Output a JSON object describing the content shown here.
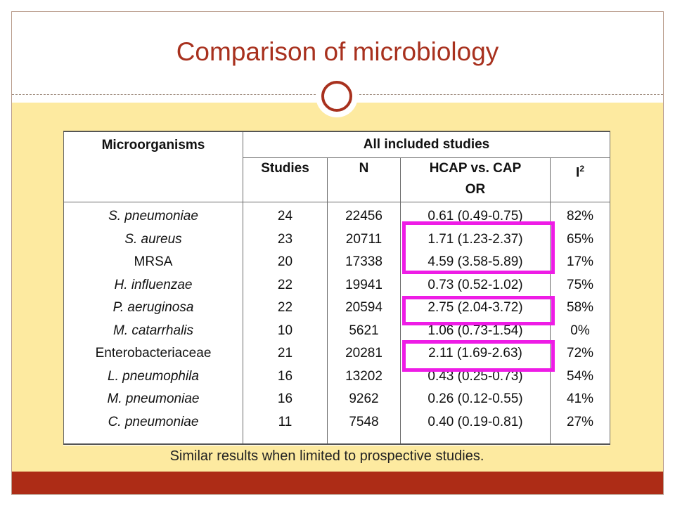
{
  "slide": {
    "title": "Comparison of microbiology",
    "footnote": "Similar results when limited to prospective studies."
  },
  "table": {
    "header_col1": "Microorganisms",
    "header_group": "All included studies",
    "subheaders": {
      "studies": "Studies",
      "n": "N",
      "or_line1": "HCAP vs. CAP",
      "or_line2": "OR",
      "i2_base": "I",
      "i2_sup": "2"
    },
    "rows": [
      {
        "organism": "S. pneumoniae",
        "italic": true,
        "studies": "24",
        "n": "22456",
        "or": "0.61 (0.49-0.75)",
        "i2": "82%"
      },
      {
        "organism": "S. aureus",
        "italic": true,
        "studies": "23",
        "n": "20711",
        "or": "1.71 (1.23-2.37)",
        "i2": "65%"
      },
      {
        "organism": "MRSA",
        "italic": false,
        "studies": "20",
        "n": "17338",
        "or": "4.59 (3.58-5.89)",
        "i2": "17%"
      },
      {
        "organism": "H. influenzae",
        "italic": true,
        "studies": "22",
        "n": "19941",
        "or": "0.73 (0.52-1.02)",
        "i2": "75%"
      },
      {
        "organism": "P. aeruginosa",
        "italic": true,
        "studies": "22",
        "n": "20594",
        "or": "2.75 (2.04-3.72)",
        "i2": "58%"
      },
      {
        "organism": "M. catarrhalis",
        "italic": true,
        "studies": "10",
        "n": "5621",
        "or": "1.06 (0.73-1.54)",
        "i2": "0%"
      },
      {
        "organism": "Enterobacteriaceae",
        "italic": false,
        "studies": "21",
        "n": "20281",
        "or": "2.11 (1.69-2.63)",
        "i2": "72%"
      },
      {
        "organism": "L. pneumophila",
        "italic": true,
        "studies": "16",
        "n": "13202",
        "or": "0.43 (0.25-0.73)",
        "i2": "54%"
      },
      {
        "organism": "M. pneumoniae",
        "italic": true,
        "studies": "16",
        "n": "9262",
        "or": "0.26 (0.12-0.55)",
        "i2": "41%"
      },
      {
        "organism": "C. pneumoniae",
        "italic": true,
        "studies": "11",
        "n": "7548",
        "or": "0.40 (0.19-0.81)",
        "i2": "27%"
      }
    ]
  },
  "colors": {
    "title": "#a8311e",
    "content_background": "#fdeaa0",
    "bottom_bar": "#ad2c16",
    "highlight_box": "#ee1ce6"
  }
}
